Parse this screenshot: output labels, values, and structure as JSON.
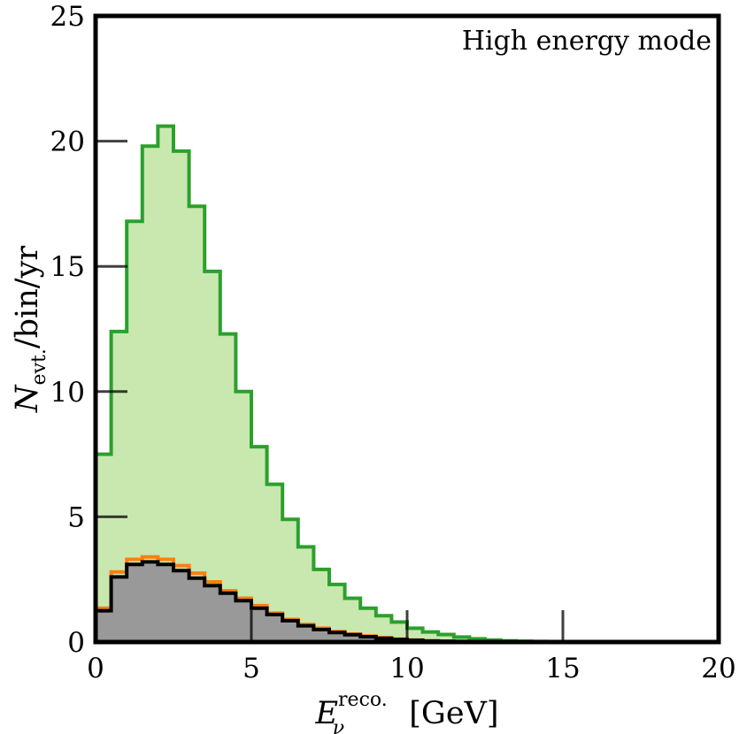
{
  "chart_data": {
    "type": "area",
    "annotation": "High energy mode",
    "xlabel": {
      "main": "E",
      "sub": "ν",
      "sup": "reco.",
      "unit": "[GeV]"
    },
    "ylabel": {
      "main": "N",
      "sub": "evt.",
      "suffix": "/bin/yr"
    },
    "xlim": [
      0,
      20
    ],
    "ylim": [
      0,
      25
    ],
    "xticks": [
      0,
      5,
      10,
      15,
      20
    ],
    "yticks": [
      0,
      5,
      10,
      15,
      20,
      25
    ],
    "bin_width": 0.5,
    "bin_edges_start": 0,
    "series": [
      {
        "color": "#2ca02c",
        "fill": "#c8e8b0",
        "style": "step-filled",
        "values": [
          7.5,
          12.4,
          16.8,
          19.8,
          20.6,
          19.6,
          17.4,
          14.8,
          12.3,
          10.0,
          7.8,
          6.3,
          4.9,
          3.8,
          2.9,
          2.3,
          1.75,
          1.35,
          1.05,
          0.8,
          0.55,
          0.4,
          0.3,
          0.2,
          0.13,
          0.08,
          0.05,
          0.03,
          0.02,
          0.01,
          0.01,
          0.0,
          0.0,
          0.0,
          0.0,
          0.0,
          0.0,
          0.0,
          0.0,
          0.0
        ]
      },
      {
        "color": "#ff7f0e",
        "fill": "none",
        "style": "step",
        "values": [
          1.35,
          2.8,
          3.3,
          3.4,
          3.3,
          3.05,
          2.75,
          2.4,
          2.05,
          1.75,
          1.45,
          1.15,
          0.9,
          0.7,
          0.55,
          0.42,
          0.32,
          0.24,
          0.17,
          0.12,
          0.08,
          0.05,
          0.03,
          0.02,
          0.01,
          0.01,
          0.0,
          0.0,
          0.0,
          0.0,
          0.0,
          0.0,
          0.0,
          0.0,
          0.0,
          0.0,
          0.0,
          0.0,
          0.0,
          0.0
        ]
      },
      {
        "color": "#000000",
        "fill": "#999999",
        "style": "step-filled",
        "values": [
          1.25,
          2.6,
          3.1,
          3.2,
          3.1,
          2.85,
          2.55,
          2.25,
          1.95,
          1.65,
          1.35,
          1.1,
          0.85,
          0.65,
          0.5,
          0.38,
          0.29,
          0.21,
          0.15,
          0.1,
          0.07,
          0.04,
          0.03,
          0.02,
          0.01,
          0.0,
          0.0,
          0.0,
          0.0,
          0.0,
          0.0,
          0.0,
          0.0,
          0.0,
          0.0,
          0.0,
          0.0,
          0.0,
          0.0,
          0.0
        ]
      }
    ]
  }
}
